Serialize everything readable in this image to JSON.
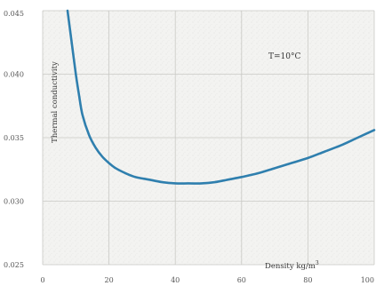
{
  "chart_data": {
    "type": "line",
    "title": "",
    "xlabel": "Density kg/m",
    "xlabel_superscript": "3",
    "ylabel": "Thermal conductivity",
    "annotation": "T=10°C",
    "xlim": [
      0,
      100
    ],
    "ylim": [
      0.025,
      0.045
    ],
    "xticks": [
      0,
      20,
      40,
      60,
      80,
      100
    ],
    "xtick_labels": [
      "0",
      "20",
      "40",
      "60",
      "80",
      "100"
    ],
    "yticks": [
      0.025,
      0.03,
      0.035,
      0.04,
      0.045
    ],
    "ytick_labels": [
      "0.025",
      "0.030",
      "0.035",
      "0.040",
      "0.045"
    ],
    "grid": true,
    "legend": "none",
    "series": [
      {
        "color": "#2f7fae",
        "x": [
          7.5,
          8,
          9,
          10,
          11,
          12,
          14,
          16,
          18,
          20,
          22,
          25,
          28,
          32,
          36,
          40,
          44,
          48,
          52,
          56,
          60,
          65,
          70,
          75,
          80,
          85,
          90,
          95,
          100
        ],
        "y": [
          0.045,
          0.044,
          0.042,
          0.04,
          0.0383,
          0.0368,
          0.0352,
          0.0342,
          0.0335,
          0.033,
          0.0326,
          0.0322,
          0.0319,
          0.0317,
          0.0315,
          0.0314,
          0.0314,
          0.0314,
          0.0315,
          0.0317,
          0.0319,
          0.0322,
          0.0326,
          0.033,
          0.0334,
          0.0339,
          0.0344,
          0.035,
          0.0356
        ]
      }
    ]
  }
}
